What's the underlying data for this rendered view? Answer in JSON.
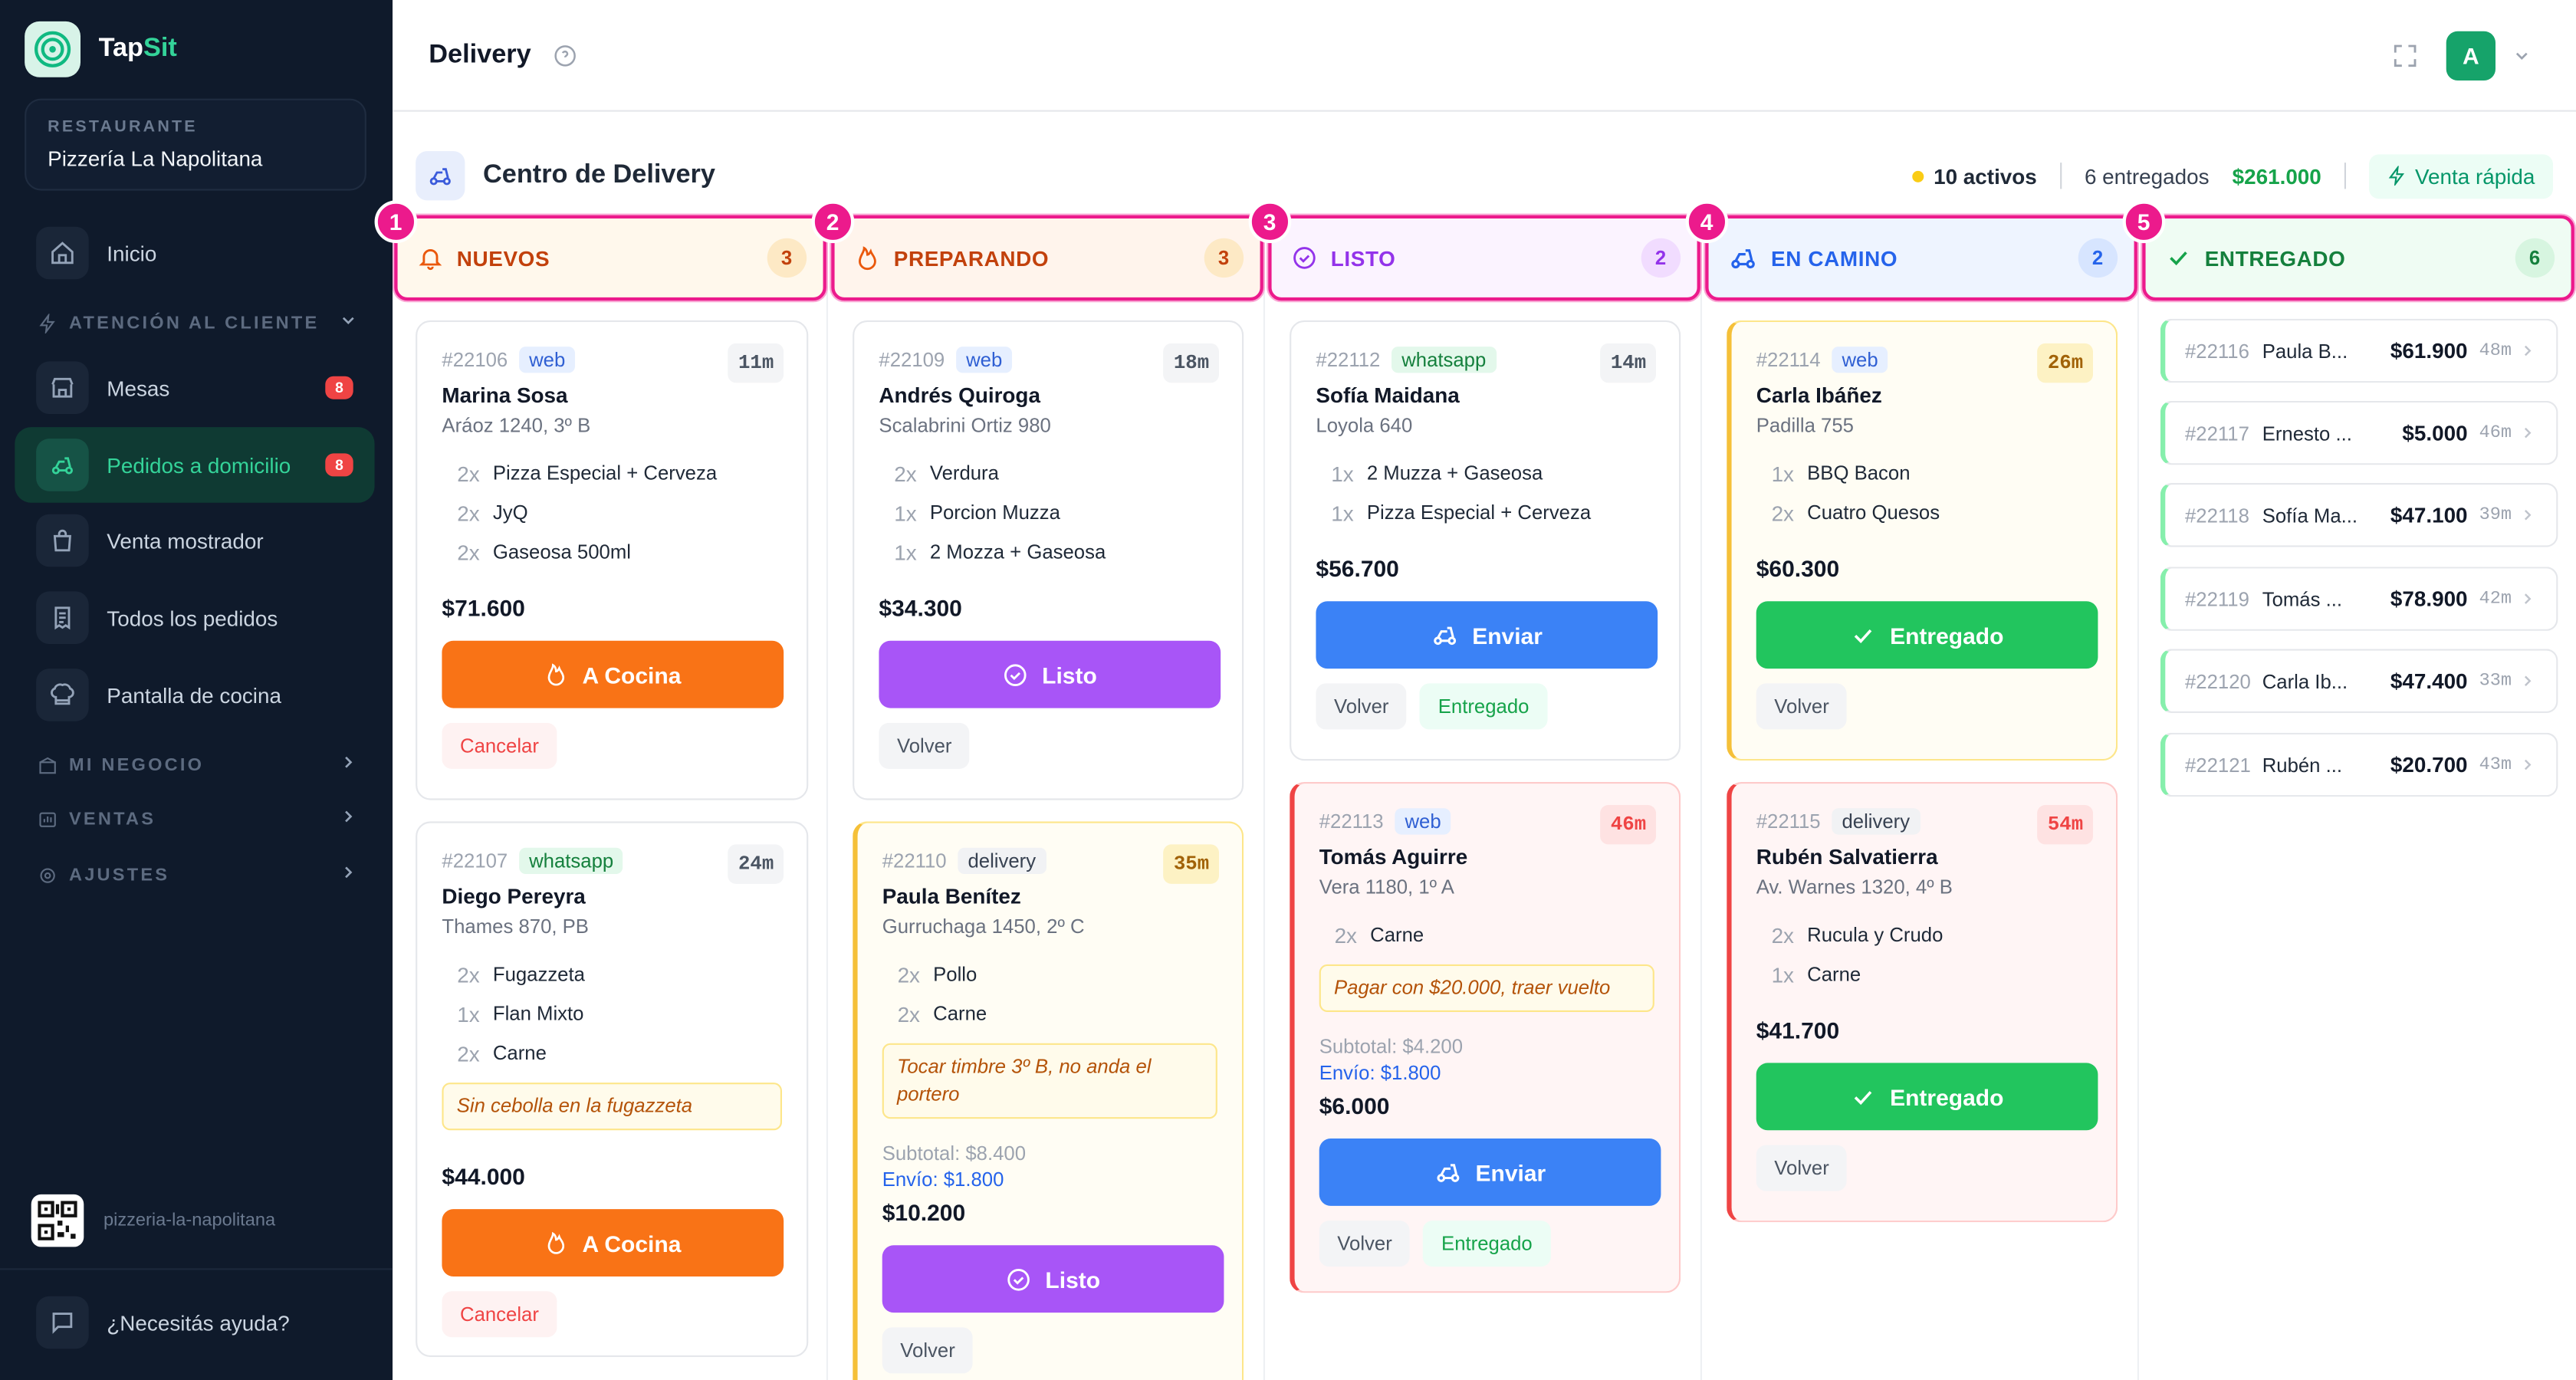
{
  "app": {
    "brand_a": "Tap",
    "brand_b": "Sit"
  },
  "restaurant": {
    "label": "RESTAURANTE",
    "name": "Pizzería La Napolitana"
  },
  "nav": {
    "inicio": "Inicio",
    "atencion": "ATENCIÓN AL CLIENTE",
    "mesas": "Mesas",
    "mesas_badge": "8",
    "pedidos": "Pedidos a domicilio",
    "pedidos_badge": "8",
    "venta_mostrador": "Venta mostrador",
    "todos": "Todos los pedidos",
    "cocina": "Pantalla de cocina",
    "mi_negocio": "MI NEGOCIO",
    "ventas": "VENTAS",
    "ajustes": "AJUSTES"
  },
  "footer": {
    "slug": "pizzeria-la-napolitana",
    "help": "¿Necesitás ayuda?"
  },
  "topbar": {
    "title": "Delivery",
    "avatar": "A"
  },
  "center": {
    "title": "Centro de Delivery",
    "active": "10 activos",
    "delivered": "6 entregados",
    "money": "$261.000",
    "quick_sale": "Venta rápida"
  },
  "columns": [
    {
      "n": "1",
      "title": "NUEVOS",
      "count": "3",
      "color": "#c2410c",
      "bg": "#fff8ec"
    },
    {
      "n": "2",
      "title": "PREPARANDO",
      "count": "3",
      "color": "#c2410c",
      "bg": "#fff4ec"
    },
    {
      "n": "3",
      "title": "LISTO",
      "count": "2",
      "color": "#9333ea",
      "bg": "#fbf3ff"
    },
    {
      "n": "4",
      "title": "EN CAMINO",
      "count": "2",
      "color": "#2563eb",
      "bg": "#eef4ff"
    },
    {
      "n": "5",
      "title": "ENTREGADO",
      "count": "6",
      "color": "#15803d",
      "bg": "#effcf3"
    }
  ],
  "orders": {
    "o22106": {
      "id": "#22106",
      "src": "web",
      "time": "11m",
      "name": "Marina Sosa",
      "addr": "Aráoz 1240, 3º B",
      "items": [
        {
          "q": "2x",
          "t": "Pizza Especial + Cerveza"
        },
        {
          "q": "2x",
          "t": "JyQ"
        },
        {
          "q": "2x",
          "t": "Gaseosa 500ml"
        }
      ],
      "total": "$71.600",
      "btn": "A Cocina",
      "cancel": "Cancelar"
    },
    "o22107": {
      "id": "#22107",
      "src": "whatsapp",
      "time": "24m",
      "name": "Diego Pereyra",
      "addr": "Thames 870, PB",
      "items": [
        {
          "q": "2x",
          "t": "Fugazzeta"
        },
        {
          "q": "1x",
          "t": "Flan Mixto"
        },
        {
          "q": "2x",
          "t": "Carne"
        }
      ],
      "note": "Sin cebolla en la fugazzeta",
      "total": "$44.000",
      "btn": "A Cocina",
      "cancel": "Cancelar"
    },
    "o22109": {
      "id": "#22109",
      "src": "web",
      "time": "18m",
      "name": "Andrés Quiroga",
      "addr": "Scalabrini Ortiz 980",
      "items": [
        {
          "q": "2x",
          "t": "Verdura"
        },
        {
          "q": "1x",
          "t": "Porcion Muzza"
        },
        {
          "q": "1x",
          "t": "2 Mozza + Gaseosa"
        }
      ],
      "total": "$34.300",
      "btn": "Listo",
      "back": "Volver"
    },
    "o22110": {
      "id": "#22110",
      "src": "delivery",
      "time": "35m",
      "name": "Paula Benítez",
      "addr": "Gurruchaga 1450, 2º C",
      "items": [
        {
          "q": "2x",
          "t": "Pollo"
        },
        {
          "q": "2x",
          "t": "Carne"
        }
      ],
      "note": "Tocar timbre 3º B, no anda el portero",
      "subtotal": "Subtotal: $8.400",
      "envio": "Envío: $1.800",
      "total": "$10.200",
      "btn": "Listo",
      "back": "Volver"
    },
    "o22112": {
      "id": "#22112",
      "src": "whatsapp",
      "time": "14m",
      "name": "Sofía Maidana",
      "addr": "Loyola 640",
      "items": [
        {
          "q": "1x",
          "t": "2 Muzza + Gaseosa"
        },
        {
          "q": "1x",
          "t": "Pizza Especial + Cerveza"
        }
      ],
      "total": "$56.700",
      "btn": "Enviar",
      "back": "Volver",
      "done": "Entregado"
    },
    "o22113": {
      "id": "#22113",
      "src": "web",
      "time": "46m",
      "name": "Tomás Aguirre",
      "addr": "Vera 1180, 1º A",
      "items": [
        {
          "q": "2x",
          "t": "Carne"
        }
      ],
      "note": "Pagar con $20.000, traer vuelto",
      "subtotal": "Subtotal: $4.200",
      "envio": "Envío: $1.800",
      "total": "$6.000",
      "btn": "Enviar",
      "back": "Volver",
      "done": "Entregado"
    },
    "o22114": {
      "id": "#22114",
      "src": "web",
      "time": "26m",
      "name": "Carla Ibáñez",
      "addr": "Padilla 755",
      "items": [
        {
          "q": "1x",
          "t": "BBQ Bacon"
        },
        {
          "q": "2x",
          "t": "Cuatro Quesos"
        }
      ],
      "total": "$60.300",
      "btn": "Entregado",
      "back": "Volver"
    },
    "o22115": {
      "id": "#22115",
      "src": "delivery",
      "time": "54m",
      "name": "Rubén Salvatierra",
      "addr": "Av. Warnes 1320, 4º B",
      "items": [
        {
          "q": "2x",
          "t": "Rucula y Crudo"
        },
        {
          "q": "1x",
          "t": "Carne"
        }
      ],
      "total": "$41.700",
      "btn": "Entregado",
      "back": "Volver"
    }
  },
  "delivered": [
    {
      "id": "#22116",
      "name": "Paula B...",
      "money": "$61.900",
      "time": "48m"
    },
    {
      "id": "#22117",
      "name": "Ernesto ...",
      "money": "$5.000",
      "time": "46m"
    },
    {
      "id": "#22118",
      "name": "Sofía Ma...",
      "money": "$47.100",
      "time": "39m"
    },
    {
      "id": "#22119",
      "name": "Tomás ...",
      "money": "$78.900",
      "time": "42m"
    },
    {
      "id": "#22120",
      "name": "Carla Ib...",
      "money": "$47.400",
      "time": "33m"
    },
    {
      "id": "#22121",
      "name": "Rubén ...",
      "money": "$20.700",
      "time": "43m"
    }
  ]
}
